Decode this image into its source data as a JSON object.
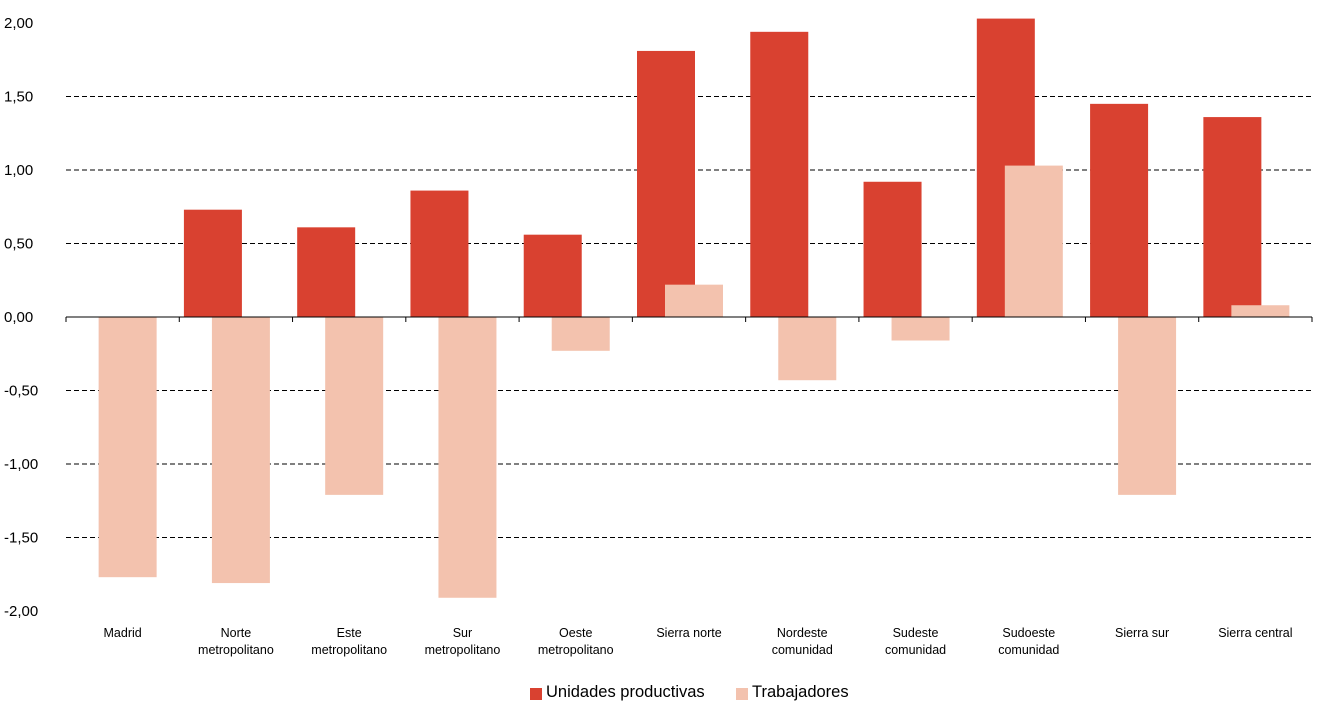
{
  "chart_data": {
    "type": "bar",
    "categories": [
      [
        "Madrid"
      ],
      [
        "Norte",
        "metropolitano"
      ],
      [
        "Este",
        "metropolitano"
      ],
      [
        "Sur",
        "metropolitano"
      ],
      [
        "Oeste",
        "metropolitano"
      ],
      [
        "Sierra norte"
      ],
      [
        "Nordeste",
        "comunidad"
      ],
      [
        "Sudeste",
        "comunidad"
      ],
      [
        "Sudoeste",
        "comunidad"
      ],
      [
        "Sierra sur"
      ],
      [
        "Sierra central"
      ]
    ],
    "series": [
      {
        "name": "Unidades productivas",
        "color": "#d94130",
        "values": [
          0.0,
          0.73,
          0.61,
          0.86,
          0.56,
          1.81,
          1.94,
          0.92,
          2.03,
          1.45,
          1.36
        ]
      },
      {
        "name": "Trabajadores",
        "color": "#f3c2ae",
        "values": [
          -1.77,
          -1.81,
          -1.21,
          -1.91,
          -0.23,
          0.22,
          -0.43,
          -0.16,
          1.03,
          -1.21,
          0.08
        ]
      }
    ],
    "ylim": [
      -2.0,
      2.0
    ],
    "yticks": [
      2.0,
      1.5,
      1.0,
      0.5,
      0.0,
      -0.5,
      -1.0,
      -1.5,
      -2.0
    ],
    "ytick_labels": [
      "2,00",
      "1,50",
      "1,00",
      "0,50",
      "0,00",
      "-0,50",
      "-1,00",
      "-1,50",
      "-2,00"
    ],
    "grid": "dashed horizontal",
    "legend": "bottom-center"
  }
}
